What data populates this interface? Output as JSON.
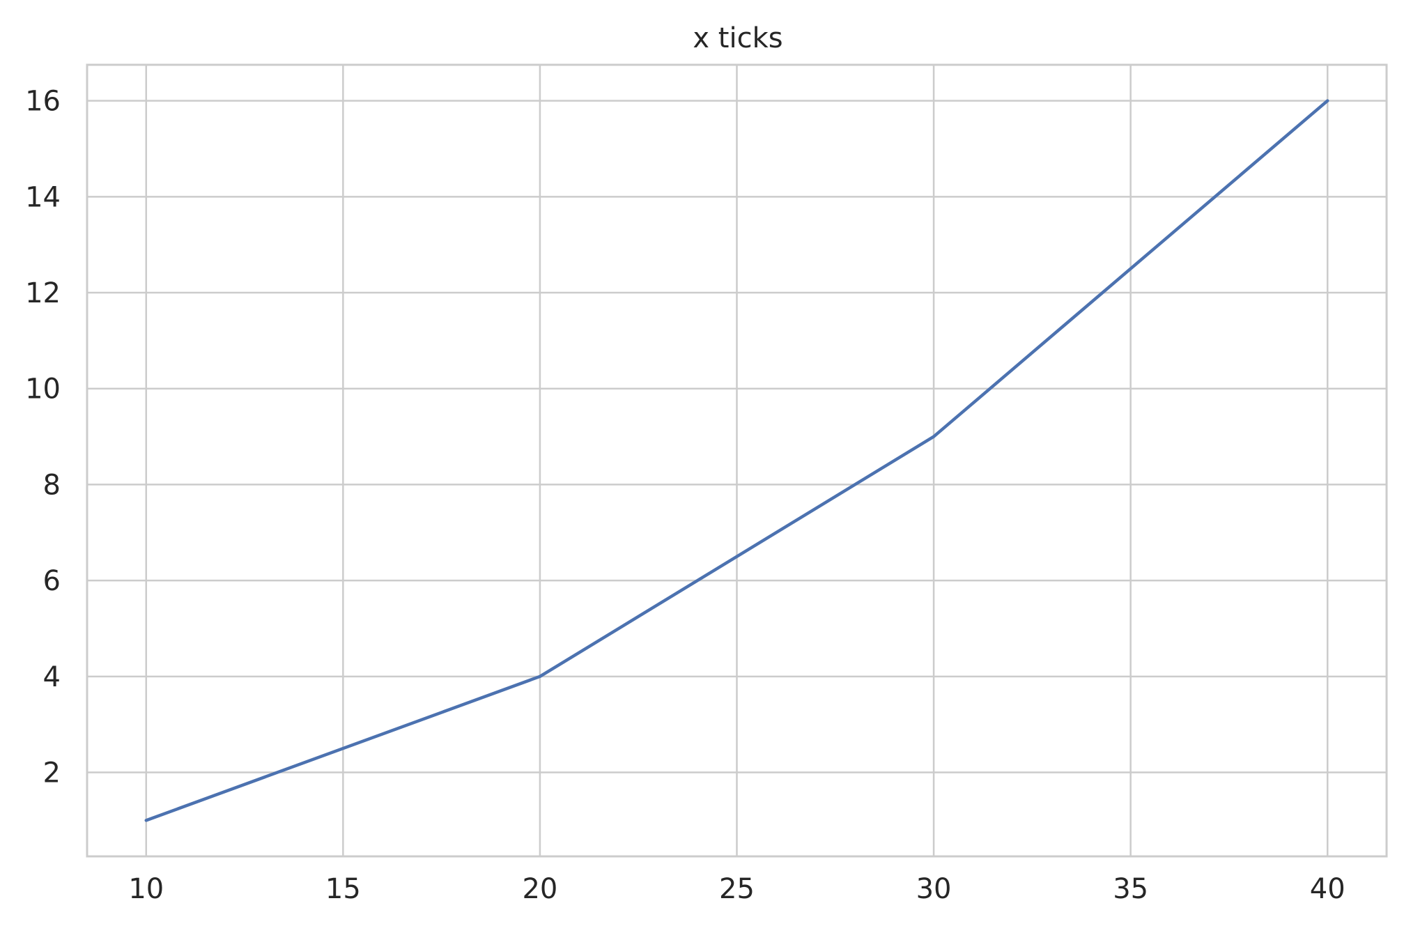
{
  "chart_data": {
    "type": "line",
    "title": "x ticks",
    "xlabel": "",
    "ylabel": "",
    "x": [
      10,
      20,
      30,
      40
    ],
    "series": [
      {
        "values": [
          1,
          4,
          9,
          16
        ],
        "color": "#4c72b0"
      }
    ],
    "xlim": [
      8.5,
      41.5
    ],
    "ylim": [
      0.25,
      16.75
    ],
    "x_ticks": [
      10,
      15,
      20,
      25,
      30,
      35,
      40
    ],
    "x_tick_labels": [
      "10",
      "15",
      "20",
      "25",
      "30",
      "35",
      "40"
    ],
    "y_ticks": [
      2,
      4,
      6,
      8,
      10,
      12,
      14,
      16
    ],
    "y_tick_labels": [
      "2",
      "4",
      "6",
      "8",
      "10",
      "12",
      "14",
      "16"
    ],
    "grid": true,
    "grid_color": "#cccccc",
    "frame_color": "#cccccc",
    "text_color": "#262626",
    "background": "#ffffff"
  }
}
